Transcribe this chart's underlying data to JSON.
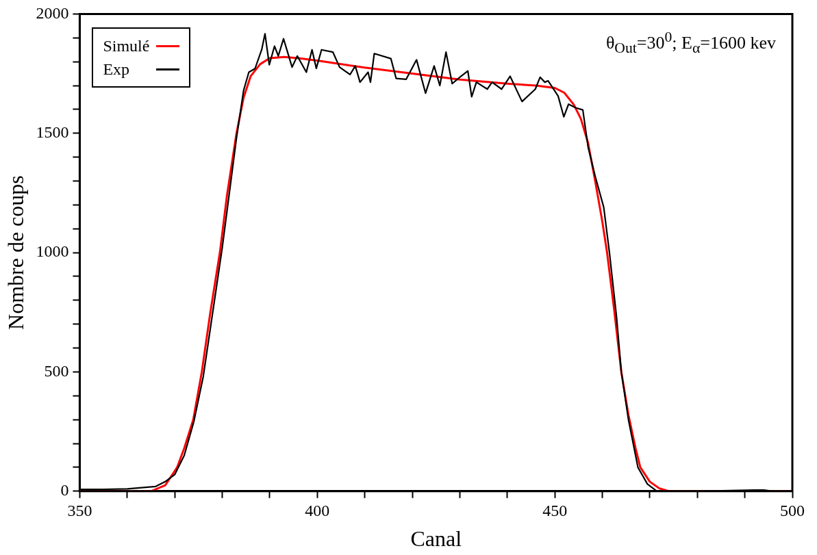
{
  "chart_data": {
    "type": "line",
    "xlabel": "Canal",
    "ylabel": "Nombre de coups",
    "annotations": [
      "θ$_{Out}$=30$^{0}$; E$_{α}$=1600 kev"
    ],
    "xlim": [
      350,
      500
    ],
    "xticks": [
      350,
      {
        "value": 360,
        "label": null
      },
      {
        "value": 370,
        "label": null
      },
      {
        "value": 380,
        "label": null
      },
      {
        "value": 390,
        "label": null
      },
      400,
      {
        "value": 410,
        "label": null
      },
      {
        "value": 420,
        "label": null
      },
      {
        "value": 430,
        "label": null
      },
      {
        "value": 440,
        "label": null
      },
      450,
      {
        "value": 460,
        "label": null
      },
      {
        "value": 470,
        "label": null
      },
      {
        "value": 480,
        "label": null
      },
      {
        "value": 490,
        "label": null
      },
      500
    ],
    "ylim": [
      0,
      2000
    ],
    "yticks": [
      0,
      {
        "value": 100,
        "label": null
      },
      {
        "value": 200,
        "label": null
      },
      {
        "value": 300,
        "label": null
      },
      {
        "value": 400,
        "label": null
      },
      500,
      {
        "value": 600,
        "label": null
      },
      {
        "value": 700,
        "label": null
      },
      {
        "value": 800,
        "label": null
      },
      {
        "value": 900,
        "label": null
      },
      1000,
      {
        "value": 1100,
        "label": null
      },
      {
        "value": 1200,
        "label": null
      },
      {
        "value": 1300,
        "label": null
      },
      {
        "value": 1400,
        "label": null
      },
      1500,
      {
        "value": 1600,
        "label": null
      },
      {
        "value": 1700,
        "label": null
      },
      {
        "value": 1800,
        "label": null
      },
      {
        "value": 1900,
        "label": null
      },
      2000
    ],
    "grid": false,
    "legend": "top left",
    "marker": "none",
    "line_style": "solid",
    "series": [
      {
        "name": "Simulé",
        "color": "#ff0000",
        "x": [
          350,
          365,
          368,
          370.5,
          372,
          373.9,
          375.7,
          377.5,
          379.5,
          381,
          383,
          384.5,
          386,
          388,
          390,
          393,
          396,
          400,
          410,
          420,
          430,
          440,
          446,
          450,
          452,
          454,
          455.5,
          457,
          458.5,
          460,
          461,
          462.5,
          464,
          465.5,
          467,
          468,
          470,
          472,
          474,
          500
        ],
        "values": [
          0,
          0,
          25,
          100,
          180,
          300,
          500,
          750,
          1000,
          1240,
          1500,
          1650,
          1740,
          1790,
          1815,
          1820,
          1815,
          1805,
          1775,
          1750,
          1725,
          1708,
          1700,
          1690,
          1670,
          1620,
          1560,
          1460,
          1300,
          1130,
          1000,
          760,
          500,
          320,
          180,
          100,
          40,
          12,
          0,
          0
        ]
      },
      {
        "name": "Exp",
        "color": "#000000",
        "x": [
          350,
          355,
          360,
          363,
          366,
          368,
          370,
          372,
          374,
          376,
          378,
          380,
          381.5,
          383,
          384.5,
          385.6,
          386.9,
          388.3,
          389,
          389.9,
          391,
          391.8,
          392.9,
          394.7,
          395.8,
          397.7,
          398.9,
          399.8,
          400.9,
          403.3,
          404.7,
          406.9,
          408,
          409,
          410.7,
          411.2,
          412,
          415.5,
          416.6,
          418.7,
          420.9,
          422.8,
          424.6,
          425.8,
          427.1,
          428.4,
          430,
          431.7,
          432.5,
          433.5,
          435.8,
          436.8,
          438.8,
          440.6,
          443.1,
          445.9,
          446.9,
          447.9,
          448.6,
          450.7,
          451.9,
          452.9,
          454.4,
          455.9,
          457,
          458.5,
          460.3,
          461.5,
          463,
          464,
          465.5,
          467.5,
          469.5,
          471.5,
          480,
          492,
          494,
          496,
          500
        ],
        "values": [
          8,
          8,
          10,
          15,
          20,
          40,
          70,
          150,
          290,
          480,
          750,
          1020,
          1250,
          1480,
          1680,
          1756,
          1771,
          1850,
          1917,
          1787,
          1865,
          1824,
          1896,
          1777,
          1824,
          1756,
          1850,
          1772,
          1850,
          1840,
          1777,
          1746,
          1782,
          1714,
          1756,
          1714,
          1834,
          1813,
          1730,
          1726,
          1808,
          1668,
          1782,
          1700,
          1840,
          1708,
          1735,
          1761,
          1653,
          1714,
          1685,
          1714,
          1685,
          1739,
          1633,
          1685,
          1735,
          1714,
          1720,
          1656,
          1569,
          1622,
          1607,
          1598,
          1443,
          1320,
          1190,
          1000,
          730,
          500,
          300,
          100,
          30,
          0,
          0,
          5,
          5,
          0,
          0
        ]
      }
    ]
  }
}
